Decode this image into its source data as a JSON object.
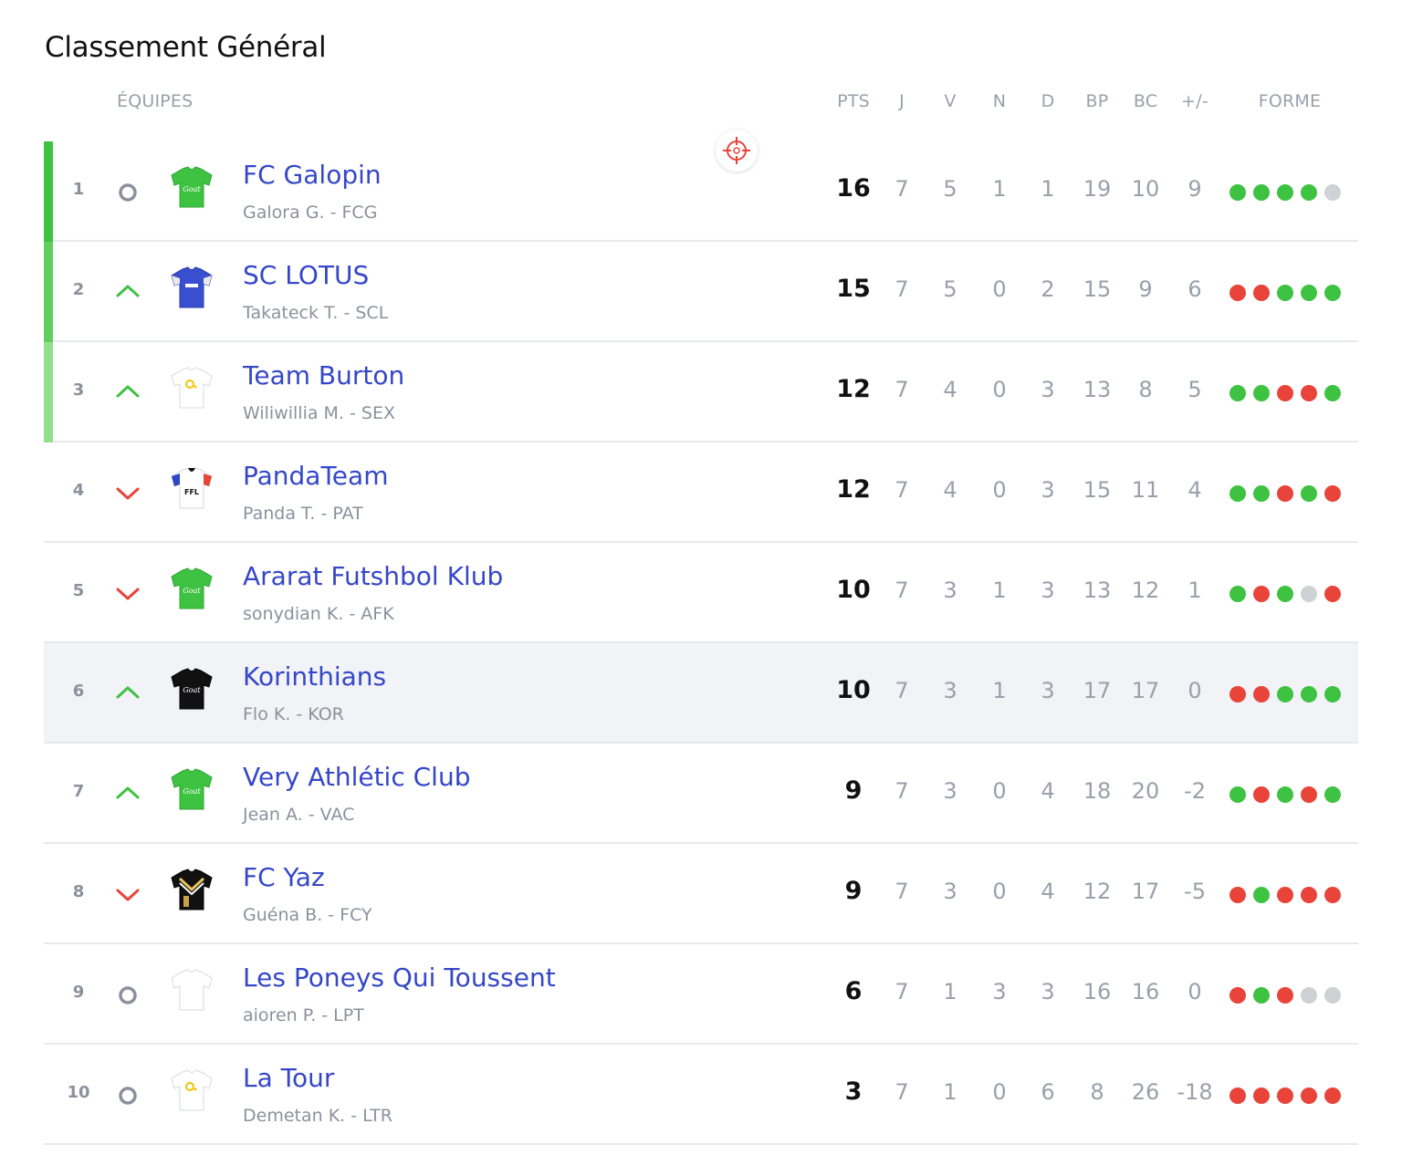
{
  "title": "Classement Général",
  "columns": {
    "teams": "ÉQUIPES",
    "pts": "PTS",
    "j": "J",
    "v": "V",
    "n": "N",
    "d": "D",
    "bp": "BP",
    "bc": "BC",
    "diff": "+/-",
    "forme": "FORME"
  },
  "colors": {
    "win": "#3ec242",
    "loss": "#e8443a",
    "draw": "#cfd1d4",
    "team_link": "#3547c8",
    "zone_1": "#3ec242",
    "zone_2": "#62cf5c",
    "zone_3": "#93e08c"
  },
  "rows": [
    {
      "rank": "1",
      "trend": "same",
      "jersey": "green",
      "name": "FC Galopin",
      "owner": "Galora G. - FCG",
      "pts": "16",
      "j": "7",
      "v": "5",
      "n": "1",
      "d": "1",
      "bp": "19",
      "bc": "10",
      "diff": "9",
      "forme": [
        "W",
        "W",
        "W",
        "W",
        "D"
      ],
      "zone": "zone_1"
    },
    {
      "rank": "2",
      "trend": "up",
      "jersey": "blue",
      "name": "SC LOTUS",
      "owner": "Takateck T. - SCL",
      "pts": "15",
      "j": "7",
      "v": "5",
      "n": "0",
      "d": "2",
      "bp": "15",
      "bc": "9",
      "diff": "6",
      "forme": [
        "L",
        "L",
        "W",
        "W",
        "W"
      ],
      "zone": "zone_2",
      "target_icon": true
    },
    {
      "rank": "3",
      "trend": "up",
      "jersey": "white-yellow",
      "name": "Team Burton",
      "owner": "Wiliwillia M. - SEX",
      "pts": "12",
      "j": "7",
      "v": "4",
      "n": "0",
      "d": "3",
      "bp": "13",
      "bc": "8",
      "diff": "5",
      "forme": [
        "W",
        "W",
        "L",
        "L",
        "W"
      ],
      "zone": "zone_3"
    },
    {
      "rank": "4",
      "trend": "down",
      "jersey": "white-ffl",
      "name": "PandaTeam",
      "owner": "Panda T. - PAT",
      "pts": "12",
      "j": "7",
      "v": "4",
      "n": "0",
      "d": "3",
      "bp": "15",
      "bc": "11",
      "diff": "4",
      "forme": [
        "W",
        "W",
        "L",
        "W",
        "L"
      ]
    },
    {
      "rank": "5",
      "trend": "down",
      "jersey": "green",
      "name": "Ararat Futshbol Klub",
      "owner": "sonydian K. - AFK",
      "pts": "10",
      "j": "7",
      "v": "3",
      "n": "1",
      "d": "3",
      "bp": "13",
      "bc": "12",
      "diff": "1",
      "forme": [
        "W",
        "L",
        "W",
        "D",
        "L"
      ]
    },
    {
      "rank": "6",
      "trend": "up",
      "jersey": "black",
      "name": "Korinthians",
      "owner": "Flo K. - KOR",
      "pts": "10",
      "j": "7",
      "v": "3",
      "n": "1",
      "d": "3",
      "bp": "17",
      "bc": "17",
      "diff": "0",
      "forme": [
        "L",
        "L",
        "W",
        "W",
        "W"
      ],
      "highlight": true
    },
    {
      "rank": "7",
      "trend": "up",
      "jersey": "green",
      "name": "Very Athlétic Club",
      "owner": "Jean A. - VAC",
      "pts": "9",
      "j": "7",
      "v": "3",
      "n": "0",
      "d": "4",
      "bp": "18",
      "bc": "20",
      "diff": "-2",
      "forme": [
        "W",
        "L",
        "W",
        "L",
        "W"
      ]
    },
    {
      "rank": "8",
      "trend": "down",
      "jersey": "black-gold",
      "name": "FC Yaz",
      "owner": "Guéna B. - FCY",
      "pts": "9",
      "j": "7",
      "v": "3",
      "n": "0",
      "d": "4",
      "bp": "12",
      "bc": "17",
      "diff": "-5",
      "forme": [
        "L",
        "W",
        "L",
        "L",
        "L"
      ]
    },
    {
      "rank": "9",
      "trend": "same",
      "jersey": "white",
      "name": "Les Poneys Qui Toussent",
      "owner": "aioren P. - LPT",
      "pts": "6",
      "j": "7",
      "v": "1",
      "n": "3",
      "d": "3",
      "bp": "16",
      "bc": "16",
      "diff": "0",
      "forme": [
        "L",
        "W",
        "L",
        "D",
        "D"
      ]
    },
    {
      "rank": "10",
      "trend": "same",
      "jersey": "white-yellow",
      "name": "La Tour",
      "owner": "Demetan K. - LTR",
      "pts": "3",
      "j": "7",
      "v": "1",
      "n": "0",
      "d": "6",
      "bp": "8",
      "bc": "26",
      "diff": "-18",
      "forme": [
        "L",
        "L",
        "L",
        "L",
        "L"
      ]
    }
  ]
}
